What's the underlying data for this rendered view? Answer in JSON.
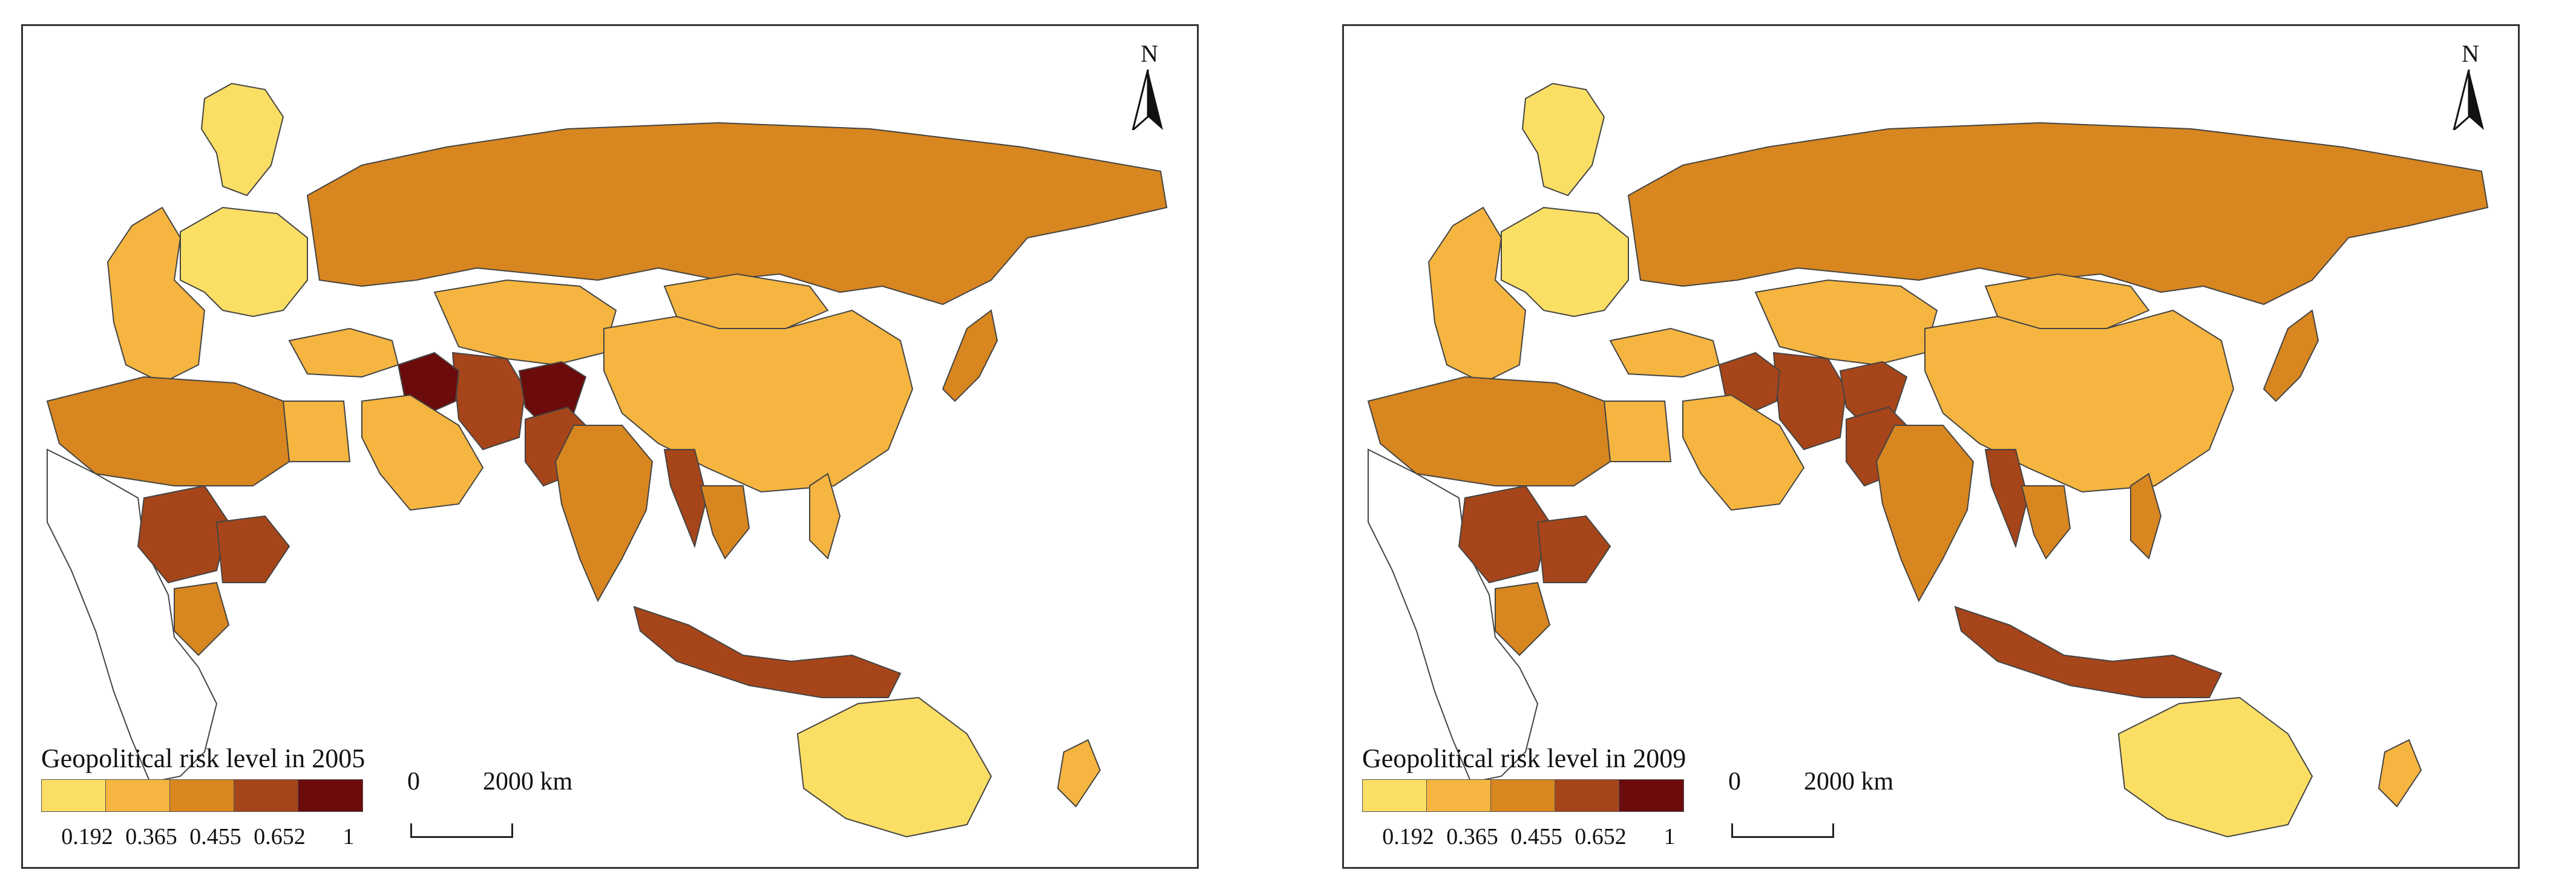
{
  "colors": {
    "classes": [
      "#fbdf65",
      "#f5b540",
      "#d8861f",
      "#a6451a",
      "#6b0b0b"
    ],
    "no_data": "#ffffff",
    "border": "#444444"
  },
  "legend": {
    "ticks": [
      "0.192",
      "0.365",
      "0.455",
      "0.652",
      "1"
    ]
  },
  "scale_bar": {
    "zero": "0",
    "distance": "2000 km"
  },
  "north": "N",
  "panels": [
    {
      "id": "2005",
      "title": "Geopolitical risk level in 2005",
      "region_classes": {
        "russia": 2,
        "europe_west": 1,
        "europe_east": 0,
        "scandinavia": 0,
        "central_asia": 1,
        "china": 1,
        "mongolia": 1,
        "iran": 3,
        "afghanistan": 4,
        "pakistan": 3,
        "iraq": 4,
        "arabia": 1,
        "india": 2,
        "myanmar": 3,
        "thailand": 2,
        "indonesia": 3,
        "philippines": 1,
        "sudan": 3,
        "ethiopia": 3,
        "kenya": 2,
        "egypt": 1,
        "north_africa": 2,
        "australia": 0,
        "new_zealand": 1,
        "japan": 2,
        "turkey": 1
      }
    },
    {
      "id": "2009",
      "title": "Geopolitical risk level in 2009",
      "region_classes": {
        "russia": 2,
        "europe_west": 1,
        "europe_east": 0,
        "scandinavia": 0,
        "central_asia": 1,
        "china": 1,
        "mongolia": 1,
        "iran": 3,
        "afghanistan": 3,
        "pakistan": 3,
        "iraq": 3,
        "arabia": 1,
        "india": 2,
        "myanmar": 3,
        "thailand": 2,
        "indonesia": 3,
        "philippines": 2,
        "sudan": 3,
        "ethiopia": 3,
        "kenya": 2,
        "egypt": 1,
        "north_africa": 2,
        "australia": 0,
        "new_zealand": 1,
        "japan": 2,
        "turkey": 1
      }
    }
  ]
}
